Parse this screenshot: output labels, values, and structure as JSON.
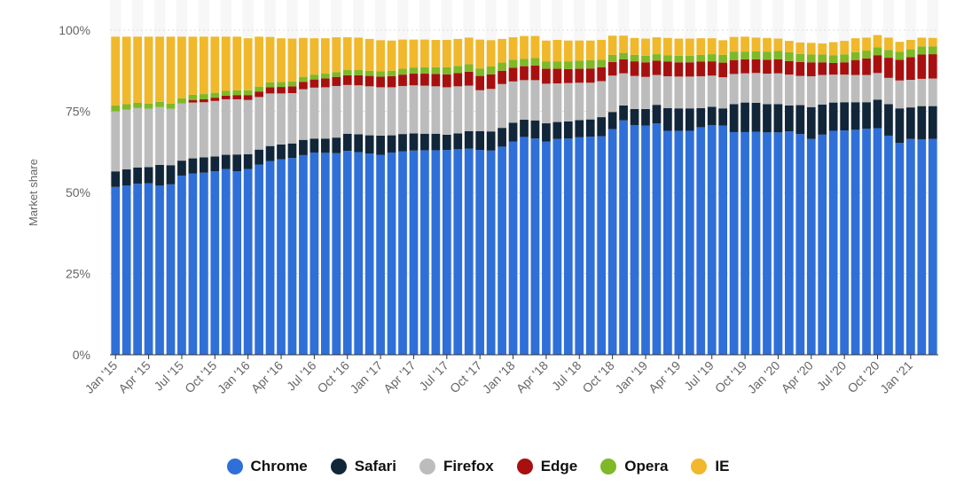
{
  "chart_data": {
    "type": "bar",
    "stacked": true,
    "ylabel": "Market share",
    "yticks": [
      "0%",
      "25%",
      "50%",
      "75%",
      "100%"
    ],
    "ylim": [
      0,
      100
    ],
    "grid": true,
    "legend_position": "bottom",
    "categories": [
      "Jan '15",
      "Feb '15",
      "Mar '15",
      "Apr '15",
      "May '15",
      "Jun '15",
      "Jul '15",
      "Aug '15",
      "Sep '15",
      "Oct '15",
      "Nov '15",
      "Dec '15",
      "Jan '16",
      "Feb '16",
      "Mar '16",
      "Apr '16",
      "May '16",
      "Jun '16",
      "Jul '16",
      "Aug '16",
      "Sep '16",
      "Oct '16",
      "Nov '16",
      "Dec '16",
      "Jan '17",
      "Feb '17",
      "Mar '17",
      "Apr '17",
      "May '17",
      "Jun '17",
      "Jul '17",
      "Aug '17",
      "Sep '17",
      "Oct '17",
      "Nov '17",
      "Dec '17",
      "Jan '18",
      "Feb '18",
      "Mar '18",
      "Apr '18",
      "May '18",
      "Jun '18",
      "Jul '18",
      "Aug '18",
      "Sep '18",
      "Oct '18",
      "Nov '18",
      "Dec '18",
      "Jan '19",
      "Feb '19",
      "Mar '19",
      "Apr '19",
      "May '19",
      "Jun '19",
      "Jul '19",
      "Aug '19",
      "Sep '19",
      "Oct '19",
      "Nov '19",
      "Dec '19",
      "Jan '20",
      "Feb '20",
      "Mar '20",
      "Apr '20",
      "May '20",
      "Jun '20",
      "Jul '20",
      "Aug '20",
      "Sep '20",
      "Oct '20",
      "Nov '20",
      "Dec '20",
      "Jan '21",
      "Feb '21",
      "Mar '21"
    ],
    "xtick_labels": [
      "Jan '15",
      "",
      "",
      "Apr '15",
      "",
      "",
      "Jul '15",
      "",
      "",
      "Oct '15",
      "",
      "",
      "Jan '16",
      "",
      "",
      "Apr '16",
      "",
      "",
      "Jul '16",
      "",
      "",
      "Oct '16",
      "",
      "",
      "Jan '17",
      "",
      "",
      "Apr '17",
      "",
      "",
      "Jul '17",
      "",
      "",
      "Oct '17",
      "",
      "",
      "Jan '18",
      "",
      "",
      "Apr '18",
      "",
      "",
      "Jul '18",
      "",
      "",
      "Oct '18",
      "",
      "",
      "Jan '19",
      "",
      "",
      "Apr '19",
      "",
      "",
      "Jul '19",
      "",
      "",
      "Oct '19",
      "",
      "",
      "Jan '20",
      "",
      "",
      "Apr '20",
      "",
      "",
      "Jul '20",
      "",
      "",
      "Oct '20",
      "",
      "",
      "Jan '21",
      "",
      ""
    ],
    "series": [
      {
        "name": "Chrome",
        "color": "#2f6fd8",
        "values": [
          51.7,
          52.1,
          52.7,
          52.8,
          52.1,
          52.5,
          55.2,
          55.8,
          56.1,
          56.5,
          57.2,
          56.5,
          57.2,
          58.6,
          59.7,
          60.2,
          60.6,
          61.5,
          62.3,
          62.2,
          62.1,
          62.8,
          62.4,
          62.0,
          61.6,
          62.3,
          62.7,
          62.9,
          63.0,
          63.0,
          63.1,
          63.3,
          63.5,
          63.1,
          62.9,
          64.1,
          65.7,
          67.1,
          66.6,
          65.7,
          66.5,
          66.6,
          67.0,
          67.2,
          67.3,
          69.5,
          72.2,
          70.7,
          70.6,
          71.3,
          69.0,
          69.0,
          69.0,
          70.1,
          70.7,
          70.6,
          68.6,
          68.6,
          68.7,
          68.5,
          68.5,
          68.8,
          68.0,
          66.5,
          67.8,
          69.0,
          69.1,
          69.3,
          69.6,
          69.8,
          67.5,
          65.3,
          66.5,
          66.4,
          66.5
        ]
      },
      {
        "name": "Safari",
        "color": "#12263a",
        "values": [
          4.8,
          5.0,
          5.0,
          5.0,
          6.4,
          5.9,
          4.6,
          4.7,
          4.7,
          4.6,
          4.4,
          5.2,
          4.6,
          4.6,
          4.6,
          4.6,
          4.5,
          4.7,
          4.3,
          4.4,
          4.8,
          5.3,
          5.5,
          5.6,
          5.9,
          5.3,
          5.3,
          5.3,
          5.1,
          5.1,
          4.7,
          4.9,
          5.4,
          5.8,
          5.9,
          5.8,
          5.8,
          5.3,
          5.6,
          5.6,
          5.2,
          5.3,
          5.3,
          5.3,
          5.9,
          5.3,
          4.6,
          5.0,
          5.1,
          5.7,
          7.0,
          6.9,
          6.9,
          5.9,
          5.7,
          5.3,
          8.6,
          9.1,
          8.9,
          8.7,
          8.7,
          8.0,
          8.9,
          9.8,
          9.3,
          8.7,
          8.7,
          8.5,
          8.2,
          8.8,
          9.7,
          10.6,
          9.7,
          10.2,
          10.1
        ]
      },
      {
        "name": "Firefox",
        "color": "#bcbcbc",
        "values": [
          18.5,
          18.4,
          18.3,
          18.0,
          17.8,
          17.4,
          17.6,
          17.2,
          17.0,
          17.1,
          17.1,
          17.0,
          16.7,
          16.2,
          16.2,
          15.7,
          15.5,
          15.6,
          15.7,
          15.8,
          15.9,
          15.0,
          15.1,
          15.1,
          14.9,
          14.8,
          14.8,
          14.8,
          14.8,
          14.6,
          14.6,
          14.5,
          14.0,
          12.6,
          13.1,
          13.5,
          12.7,
          12.2,
          12.4,
          12.2,
          11.9,
          11.8,
          11.5,
          11.3,
          11.1,
          11.2,
          9.9,
          10.2,
          9.9,
          9.2,
          9.8,
          9.8,
          9.8,
          9.8,
          9.6,
          9.6,
          9.3,
          9.0,
          9.2,
          9.4,
          9.5,
          9.5,
          9.0,
          9.5,
          9.1,
          8.6,
          8.5,
          8.4,
          8.4,
          8.2,
          8.1,
          8.6,
          8.5,
          8.4,
          8.5
        ]
      },
      {
        "name": "Edge",
        "color": "#a81010",
        "values": [
          0.0,
          0.0,
          0.0,
          0.0,
          0.0,
          0.0,
          0.0,
          0.8,
          0.9,
          1.0,
          1.1,
          1.3,
          1.5,
          1.7,
          1.9,
          2.0,
          2.1,
          2.3,
          2.5,
          2.7,
          2.8,
          3.0,
          3.1,
          3.2,
          3.3,
          3.4,
          3.5,
          3.6,
          3.7,
          3.8,
          4.0,
          4.1,
          4.3,
          4.4,
          4.5,
          4.1,
          4.2,
          4.3,
          4.5,
          4.6,
          4.5,
          4.3,
          4.3,
          4.4,
          4.3,
          4.2,
          4.3,
          4.5,
          4.5,
          4.4,
          4.5,
          4.4,
          4.4,
          4.5,
          4.4,
          4.5,
          4.3,
          4.3,
          4.2,
          4.3,
          4.3,
          4.2,
          4.3,
          4.3,
          3.9,
          3.6,
          3.8,
          4.6,
          5.1,
          5.5,
          6.2,
          6.4,
          7.0,
          7.5,
          7.5
        ]
      },
      {
        "name": "Opera",
        "color": "#7fb926",
        "values": [
          1.8,
          1.7,
          1.6,
          1.6,
          1.6,
          1.6,
          1.6,
          1.6,
          1.6,
          1.5,
          1.5,
          1.5,
          1.5,
          1.5,
          1.5,
          1.5,
          1.5,
          1.5,
          1.5,
          1.5,
          1.5,
          1.6,
          1.6,
          1.6,
          1.6,
          1.7,
          1.8,
          1.9,
          2.0,
          2.1,
          2.2,
          2.2,
          2.3,
          2.3,
          2.4,
          2.5,
          2.5,
          2.3,
          2.3,
          2.3,
          2.3,
          2.4,
          2.5,
          2.6,
          2.3,
          2.2,
          2.0,
          2.0,
          2.0,
          2.0,
          2.0,
          2.0,
          2.0,
          2.1,
          2.2,
          2.4,
          2.6,
          2.4,
          2.5,
          2.5,
          2.6,
          2.7,
          2.5,
          2.4,
          2.4,
          2.4,
          2.4,
          2.4,
          2.4,
          2.4,
          2.4,
          2.4,
          2.4,
          2.5,
          2.4
        ]
      },
      {
        "name": "IE",
        "color": "#f0b82a",
        "values": [
          21.2,
          20.8,
          20.4,
          20.6,
          20.1,
          20.6,
          19.0,
          17.9,
          17.7,
          17.3,
          16.7,
          16.5,
          16.0,
          15.4,
          14.0,
          13.5,
          13.2,
          12.0,
          11.2,
          10.9,
          10.7,
          10.1,
          10.0,
          9.8,
          9.6,
          9.3,
          9.0,
          8.6,
          8.5,
          8.4,
          8.4,
          8.3,
          8.2,
          8.9,
          8.1,
          7.3,
          6.9,
          7.0,
          6.8,
          6.4,
          6.6,
          6.4,
          6.2,
          6.0,
          6.1,
          5.9,
          5.3,
          5.2,
          5.3,
          5.2,
          5.3,
          5.3,
          5.3,
          5.1,
          4.9,
          4.5,
          4.5,
          4.6,
          4.2,
          4.2,
          3.8,
          3.5,
          3.5,
          3.6,
          3.4,
          4.0,
          4.2,
          4.3,
          4.0,
          3.8,
          3.8,
          3.1,
          2.9,
          2.7,
          2.6
        ]
      }
    ]
  }
}
